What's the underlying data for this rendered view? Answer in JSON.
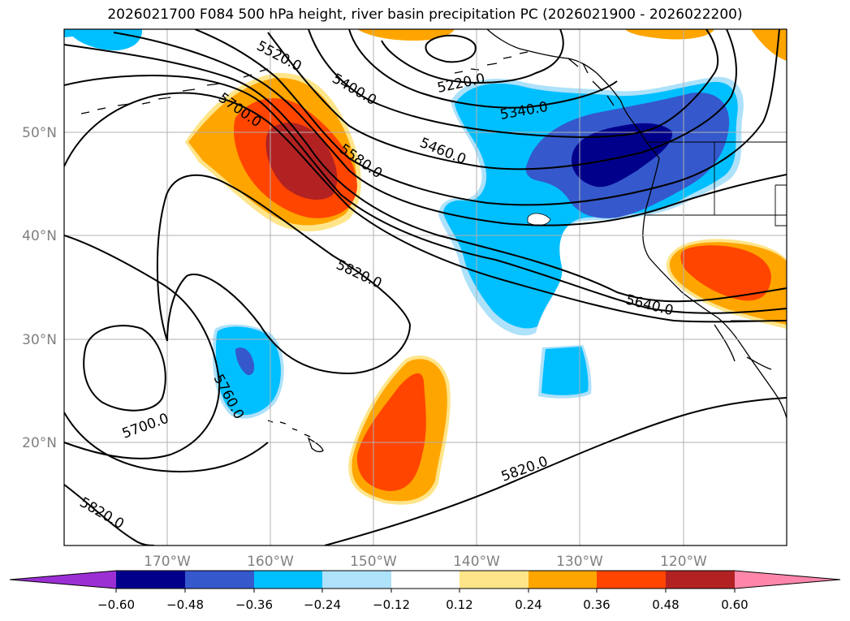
{
  "title": "2026021700 F084 500 hPa height, river basin precipitation PC (2026021900 - 2026022200)",
  "map": {
    "lat_ticks": [
      "50°N",
      "40°N",
      "30°N",
      "20°N"
    ],
    "lon_ticks": [
      "170°W",
      "160°W",
      "150°W",
      "140°W",
      "130°W",
      "120°W"
    ],
    "contour_labels": [
      "5520.0",
      "5400.0",
      "5220.0",
      "5340.0",
      "5700.0",
      "5580.0",
      "5460.0",
      "5820.0",
      "5640.0",
      "5760.0",
      "5700.0",
      "5820.0",
      "5820.0"
    ],
    "colors": {
      "c_neg060": "#9b2fd4",
      "c_neg048": "#00008b",
      "c_neg036": "#3558cc",
      "c_neg024": "#00bfff",
      "c_neg012": "#aee1fa",
      "c_pos012": "#ffe58a",
      "c_pos024": "#ffa500",
      "c_pos036": "#ff4500",
      "c_pos048": "#b22222",
      "c_pos060": "#ff86ab"
    }
  },
  "colorbar": {
    "tick_labels": [
      "−0.60",
      "−0.48",
      "−0.36",
      "−0.24",
      "−0.12",
      "0.12",
      "0.24",
      "0.36",
      "0.48",
      "0.60"
    ]
  }
}
